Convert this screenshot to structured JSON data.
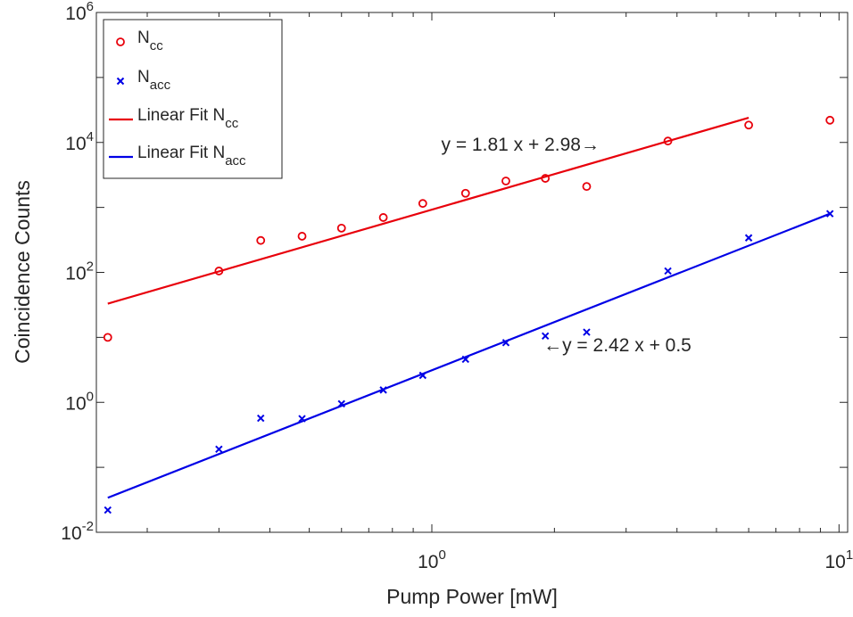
{
  "chart_data": {
    "type": "scatter",
    "title": "",
    "xlabel": "Pump Power [mW]",
    "ylabel": "Coincidence Counts",
    "xscale": "log",
    "yscale": "log",
    "xlim": [
      0.15,
      10.5
    ],
    "ylim": [
      0.01,
      1000000
    ],
    "x_ticks": [
      {
        "value": 1,
        "base": "10",
        "exp": "0"
      },
      {
        "value": 10,
        "base": "10",
        "exp": "1"
      }
    ],
    "y_ticks": [
      {
        "value": 0.01,
        "base": "10",
        "exp": "-2"
      },
      {
        "value": 1,
        "base": "10",
        "exp": "0"
      },
      {
        "value": 100,
        "base": "10",
        "exp": "2"
      },
      {
        "value": 10000,
        "base": "10",
        "exp": "4"
      },
      {
        "value": 1000000,
        "base": "10",
        "exp": "6"
      }
    ],
    "grid": false,
    "legend_position": "top-left",
    "series": [
      {
        "name": "N_cc",
        "legend_base": "N",
        "legend_sub": "cc",
        "kind": "scatter",
        "marker": "circle",
        "color": "#e8000b",
        "x": [
          0.16,
          0.3,
          0.38,
          0.48,
          0.6,
          0.76,
          0.95,
          1.21,
          1.52,
          1.9,
          2.4,
          3.8,
          6.0,
          9.5
        ],
        "y": [
          10,
          105,
          310,
          360,
          480,
          700,
          1150,
          1650,
          2550,
          2800,
          2100,
          10500,
          18500,
          22000
        ]
      },
      {
        "name": "N_acc",
        "legend_base": "N",
        "legend_sub": "acc",
        "kind": "scatter",
        "marker": "x",
        "color": "#0000e6",
        "x": [
          0.16,
          0.3,
          0.38,
          0.48,
          0.6,
          0.76,
          0.95,
          1.21,
          1.52,
          1.9,
          2.4,
          3.8,
          6.0,
          9.5
        ],
        "y": [
          0.022,
          0.19,
          0.57,
          0.56,
          0.95,
          1.55,
          2.6,
          4.6,
          8.3,
          10.5,
          12.0,
          105,
          340,
          800
        ]
      },
      {
        "name": "Linear Fit N_cc",
        "legend_base": "Linear Fit N",
        "legend_sub": "cc",
        "kind": "line",
        "color": "#e8000b",
        "x": [
          0.16,
          6.0
        ],
        "y": [
          33,
          24000
        ]
      },
      {
        "name": "Linear Fit N_acc",
        "legend_base": "Linear Fit N",
        "legend_sub": "acc",
        "kind": "line",
        "color": "#0000e6",
        "x": [
          0.16,
          9.5
        ],
        "y": [
          0.034,
          800
        ]
      }
    ],
    "annotations": [
      {
        "text": "y = 1.81 x + 2.98→",
        "x": 1.65,
        "y": 7500,
        "anchor": "middle"
      },
      {
        "text": "←y = 2.42 x + 0.5",
        "x": 1.88,
        "y": 6.1,
        "anchor": "start"
      }
    ]
  }
}
